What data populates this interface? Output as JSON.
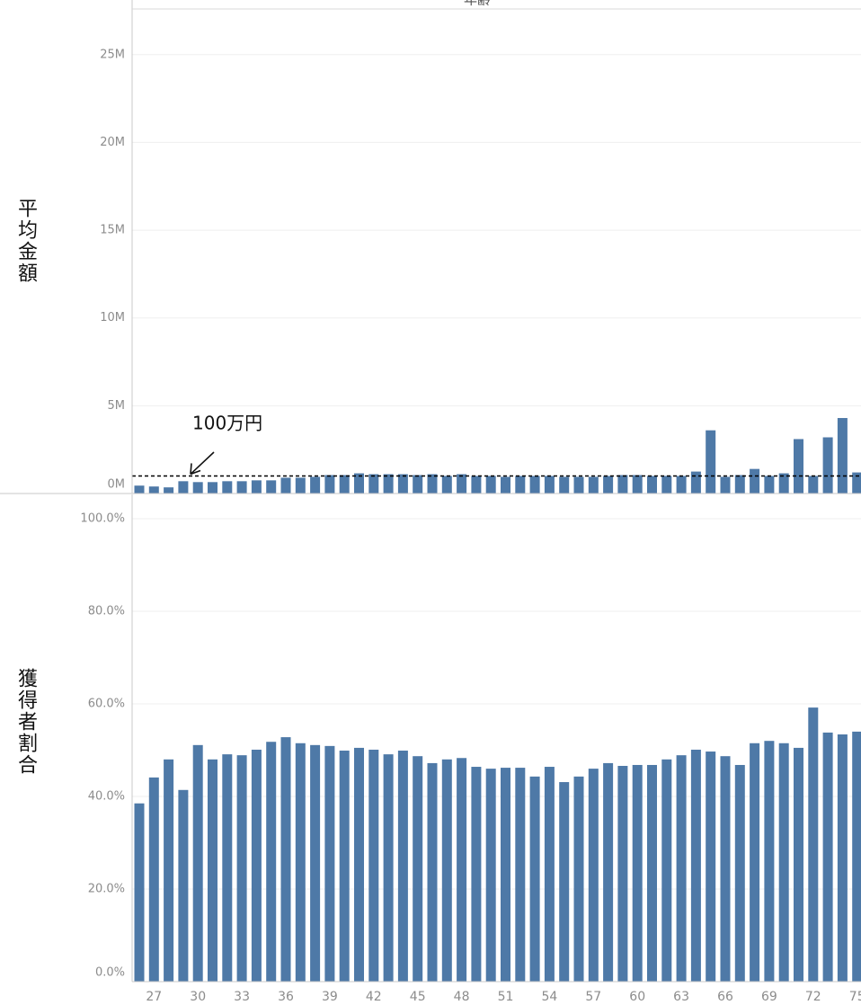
{
  "chart_data": [
    {
      "type": "bar",
      "xlabel": "年齢",
      "ylabel": "平均金額",
      "color": "#4e79a7",
      "values": [
        450000,
        400000,
        350000,
        700000,
        650000,
        650000,
        700000,
        700000,
        750000,
        750000,
        900000,
        900000,
        950000,
        1050000,
        1050000,
        1150000,
        1100000,
        1100000,
        1100000,
        1050000,
        1100000,
        1000000,
        1100000,
        1000000,
        1000000,
        950000,
        1000000,
        1000000,
        1000000,
        950000,
        950000,
        950000,
        1000000,
        1050000,
        1050000,
        1000000,
        1000000,
        1000000,
        1250000,
        3600000,
        950000,
        1050000,
        1400000,
        1000000,
        1150000,
        3100000,
        1000000,
        3200000,
        4300000,
        1200000
      ],
      "ylim": [
        0,
        27600000
      ],
      "yticks": [
        {
          "value": 0,
          "label": "0M"
        },
        {
          "value": 5000000,
          "label": "5M"
        },
        {
          "value": 10000000,
          "label": "10M"
        },
        {
          "value": 15000000,
          "label": "15M"
        },
        {
          "value": 20000000,
          "label": "20M"
        },
        {
          "value": 25000000,
          "label": "25M"
        }
      ],
      "grid": true,
      "reference_line": {
        "value": 1000000,
        "label": "100万円"
      }
    },
    {
      "type": "bar",
      "ylabel": "獲得者割合",
      "color": "#4e79a7",
      "categories": [
        null,
        "27",
        null,
        null,
        "30",
        null,
        null,
        "33",
        null,
        null,
        "36",
        null,
        null,
        "39",
        null,
        null,
        "42",
        null,
        null,
        "45",
        null,
        null,
        "48",
        null,
        null,
        "51",
        null,
        null,
        "54",
        null,
        null,
        "57",
        null,
        null,
        "60",
        null,
        null,
        "63",
        null,
        null,
        "66",
        null,
        null,
        "69",
        null,
        null,
        "72",
        null,
        null,
        "75"
      ],
      "values": [
        38.5,
        44.1,
        48.0,
        41.4,
        51.1,
        48.0,
        49.1,
        48.9,
        50.1,
        51.8,
        52.8,
        51.5,
        51.1,
        50.9,
        49.9,
        50.5,
        50.1,
        49.1,
        49.9,
        48.7,
        47.2,
        48.0,
        48.3,
        46.4,
        46.0,
        46.2,
        46.2,
        44.3,
        46.4,
        43.1,
        44.3,
        46.0,
        47.2,
        46.6,
        46.8,
        46.8,
        48.0,
        48.9,
        50.1,
        49.7,
        48.7,
        46.8,
        51.5,
        52.0,
        51.5,
        50.5,
        59.2,
        53.8,
        53.4,
        54.0
      ],
      "ylim": [
        0,
        103.3
      ],
      "yticks": [
        {
          "value": 0,
          "label": "0.0%"
        },
        {
          "value": 20,
          "label": "20.0%"
        },
        {
          "value": 40,
          "label": "40.0%"
        },
        {
          "value": 60,
          "label": "60.0%"
        },
        {
          "value": 80,
          "label": "80.0%"
        },
        {
          "value": 100,
          "label": "100.0%"
        }
      ],
      "grid": true
    }
  ]
}
